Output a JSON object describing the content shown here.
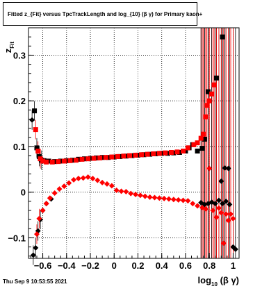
{
  "title": "Fitted  z_{Fit}  versus TpcTrackLength and log_{10} (β γ) for Primary kaon+",
  "timestamp": "Thu Sep  9 10:53:55 2021",
  "chart_data": {
    "type": "scatter",
    "xlabel": "log_{10} (β γ)",
    "ylabel": "z_{Fit}",
    "xlim": [
      -0.72,
      1.05
    ],
    "ylim": [
      -0.145,
      0.36
    ],
    "xticks": [
      -0.6,
      -0.4,
      -0.2,
      0,
      0.2,
      0.4,
      0.6,
      0.8,
      1
    ],
    "xtick_labels": [
      "−0.6",
      "−0.4",
      "−0.2",
      "0",
      "0.2",
      "0.4",
      "0.6",
      "0.8",
      "1"
    ],
    "yticks": [
      -0.1,
      0,
      0.1,
      0.2,
      0.3
    ],
    "ytick_labels": [
      "−0.1",
      "0",
      "0.1",
      "0.2",
      "0.3"
    ],
    "grid": true,
    "colors": {
      "black": "#000000",
      "red": "#ff0000"
    },
    "series": [
      {
        "marker": "square",
        "color": "#000000",
        "points": [
          [
            -0.67,
            0.178
          ],
          [
            -0.65,
            0.097
          ],
          [
            -0.63,
            0.078
          ],
          [
            -0.61,
            0.07
          ],
          [
            -0.59,
            0.069
          ],
          [
            -0.55,
            0.068
          ],
          [
            -0.5,
            0.067
          ],
          [
            -0.45,
            0.068
          ],
          [
            -0.4,
            0.069
          ],
          [
            -0.35,
            0.07
          ],
          [
            -0.3,
            0.072
          ],
          [
            -0.25,
            0.073
          ],
          [
            -0.2,
            0.074
          ],
          [
            -0.15,
            0.075
          ],
          [
            -0.1,
            0.076
          ],
          [
            -0.05,
            0.076
          ],
          [
            0.0,
            0.077
          ],
          [
            0.05,
            0.078
          ],
          [
            0.1,
            0.079
          ],
          [
            0.15,
            0.08
          ],
          [
            0.2,
            0.081
          ],
          [
            0.25,
            0.082
          ],
          [
            0.3,
            0.083
          ],
          [
            0.35,
            0.084
          ],
          [
            0.4,
            0.085
          ],
          [
            0.45,
            0.085
          ],
          [
            0.5,
            0.086
          ],
          [
            0.55,
            0.087
          ],
          [
            0.6,
            0.09
          ],
          [
            0.63,
            0.097
          ],
          [
            0.66,
            0.104
          ],
          [
            0.7,
            0.09
          ],
          [
            0.74,
            0.096
          ],
          [
            0.76,
            0.116
          ],
          [
            0.79,
            0.22
          ],
          [
            0.86,
            0.25
          ],
          [
            0.91,
            0.34
          ]
        ]
      },
      {
        "marker": "square",
        "color": "#ff0000",
        "points": [
          [
            -0.66,
            0.137
          ],
          [
            -0.64,
            0.09
          ],
          [
            -0.62,
            0.073
          ],
          [
            -0.6,
            0.068
          ],
          [
            -0.57,
            0.066
          ],
          [
            -0.52,
            0.066
          ],
          [
            -0.47,
            0.067
          ],
          [
            -0.42,
            0.068
          ],
          [
            -0.37,
            0.069
          ],
          [
            -0.32,
            0.07
          ],
          [
            -0.27,
            0.072
          ],
          [
            -0.22,
            0.073
          ],
          [
            -0.17,
            0.074
          ],
          [
            -0.12,
            0.075
          ],
          [
            -0.07,
            0.076
          ],
          [
            -0.02,
            0.077
          ],
          [
            0.03,
            0.078
          ],
          [
            0.08,
            0.079
          ],
          [
            0.13,
            0.08
          ],
          [
            0.18,
            0.081
          ],
          [
            0.23,
            0.082
          ],
          [
            0.28,
            0.083
          ],
          [
            0.33,
            0.084
          ],
          [
            0.38,
            0.085
          ],
          [
            0.43,
            0.086
          ],
          [
            0.48,
            0.087
          ],
          [
            0.53,
            0.088
          ],
          [
            0.58,
            0.09
          ],
          [
            0.62,
            0.097
          ],
          [
            0.67,
            0.104
          ],
          [
            0.7,
            0.108
          ],
          [
            0.73,
            0.118
          ],
          [
            0.75,
            0.127
          ],
          [
            0.77,
            0.165
          ],
          [
            0.78,
            0.19
          ],
          [
            0.8,
            0.2
          ],
          [
            0.82,
            0.215
          ],
          [
            0.84,
            0.235
          ]
        ]
      },
      {
        "marker": "diamond",
        "color": "#000000",
        "points": [
          [
            -0.69,
            0.158
          ],
          [
            -0.68,
            -0.138
          ],
          [
            -0.66,
            -0.122
          ],
          [
            -0.64,
            -0.085
          ],
          [
            -0.62,
            -0.06
          ],
          [
            -0.6,
            -0.04
          ],
          [
            -0.57,
            -0.025
          ],
          [
            -0.53,
            -0.015
          ],
          [
            0.73,
            -0.023
          ],
          [
            0.76,
            -0.027
          ],
          [
            0.79,
            -0.025
          ],
          [
            0.82,
            -0.022
          ],
          [
            0.85,
            -0.025
          ],
          [
            0.88,
            -0.018
          ],
          [
            0.91,
            -0.025
          ],
          [
            0.94,
            -0.02
          ],
          [
            0.97,
            -0.027
          ],
          [
            1.0,
            -0.12
          ],
          [
            1.02,
            -0.125
          ],
          [
            0.9,
            0.024
          ],
          [
            0.93,
            0.053
          ],
          [
            0.96,
            0.052
          ]
        ]
      },
      {
        "marker": "diamond",
        "color": "#ff0000",
        "points": [
          [
            -0.65,
            -0.092
          ],
          [
            -0.63,
            -0.058
          ],
          [
            -0.6,
            -0.04
          ],
          [
            -0.57,
            -0.025
          ],
          [
            -0.54,
            -0.013
          ],
          [
            -0.5,
            -0.002
          ],
          [
            -0.46,
            0.007
          ],
          [
            -0.42,
            0.013
          ],
          [
            -0.38,
            0.02
          ],
          [
            -0.34,
            0.027
          ],
          [
            -0.3,
            0.03
          ],
          [
            -0.26,
            0.031
          ],
          [
            -0.22,
            0.033
          ],
          [
            -0.18,
            0.03
          ],
          [
            -0.14,
            0.026
          ],
          [
            -0.1,
            0.021
          ],
          [
            -0.06,
            0.018
          ],
          [
            -0.02,
            0.014
          ],
          [
            0.02,
            0.004
          ],
          [
            0.06,
            0.002
          ],
          [
            0.1,
            0.001
          ],
          [
            0.14,
            -0.003
          ],
          [
            0.18,
            -0.005
          ],
          [
            0.22,
            -0.007
          ],
          [
            0.26,
            -0.009
          ],
          [
            0.3,
            -0.011
          ],
          [
            0.34,
            -0.012
          ],
          [
            0.38,
            -0.013
          ],
          [
            0.42,
            -0.014
          ],
          [
            0.46,
            -0.015
          ],
          [
            0.5,
            -0.016
          ],
          [
            0.54,
            -0.017
          ],
          [
            0.58,
            -0.018
          ],
          [
            0.62,
            -0.019
          ],
          [
            0.66,
            -0.025
          ],
          [
            0.7,
            -0.03
          ],
          [
            0.74,
            -0.034
          ],
          [
            0.77,
            -0.037
          ],
          [
            0.8,
            0.052
          ],
          [
            0.83,
            -0.04
          ],
          [
            0.86,
            -0.055
          ],
          [
            0.88,
            -0.035
          ],
          [
            0.9,
            -0.045
          ],
          [
            0.92,
            -0.112
          ],
          [
            0.94,
            -0.048
          ],
          [
            0.96,
            -0.062
          ],
          [
            0.98,
            -0.048
          ],
          [
            1.0,
            -0.058
          ]
        ]
      }
    ]
  }
}
